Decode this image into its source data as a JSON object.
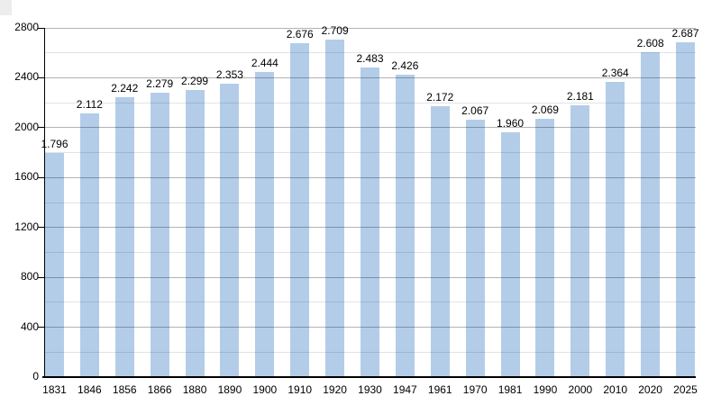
{
  "chart_data": {
    "type": "bar",
    "title": "",
    "xlabel": "",
    "ylabel": "",
    "categories": [
      "1831",
      "1846",
      "1856",
      "1866",
      "1880",
      "1890",
      "1900",
      "1910",
      "1920",
      "1930",
      "1947",
      "1961",
      "1970",
      "1981",
      "1990",
      "2000",
      "2010",
      "2020",
      "2025"
    ],
    "values": [
      1796,
      2112,
      2242,
      2279,
      2299,
      2353,
      2444,
      2676,
      2709,
      2483,
      2426,
      2172,
      2067,
      1960,
      2069,
      2181,
      2364,
      2608,
      2687
    ],
    "value_labels": [
      "1.796",
      "2.112",
      "2.242",
      "2.279",
      "2.299",
      "2.353",
      "2.444",
      "2.676",
      "2.709",
      "2.483",
      "2.426",
      "2.172",
      "2.067",
      "1.960",
      "2.069",
      "2.181",
      "2.364",
      "2.608",
      "2.687"
    ],
    "ylim": [
      0,
      2800
    ],
    "y_tick_values": [
      0,
      400,
      800,
      1200,
      1600,
      2000,
      2400,
      2800
    ],
    "y_tick_labels": [
      "0",
      "400",
      "800",
      "1200",
      "1600",
      "2000",
      "2400",
      "2800"
    ],
    "y_minor_step": 200,
    "y_major_step": 400,
    "grid": true,
    "legend": null,
    "colors": {
      "bar_fill": "#b3cde9",
      "gridline_major": "#b3b3b3",
      "gridline_minor": "#e3e3e3",
      "axis": "#000000",
      "label_text": "#000000",
      "background": "#ffffff"
    }
  }
}
